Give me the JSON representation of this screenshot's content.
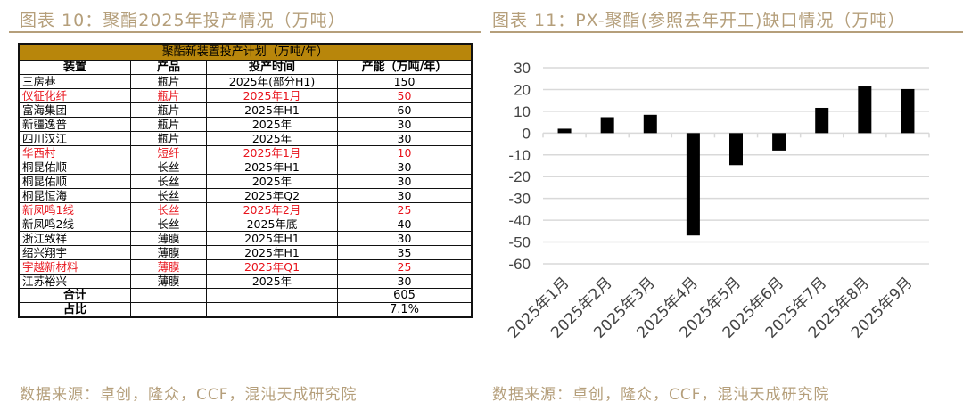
{
  "left": {
    "title": "图表 10：聚酯2025年投产情况（万吨）",
    "source": "数据来源：卓创，隆众，CCF，混沌天成研究院",
    "table": {
      "caption": "聚酯新装置投产计划（万吨/年）",
      "headers": [
        "装置",
        "产品",
        "投产时间",
        "产能（万吨/年）"
      ],
      "rows": [
        {
          "cells": [
            "三房巷",
            "瓶片",
            "2025年(部分H1)",
            "150"
          ],
          "highlight": false
        },
        {
          "cells": [
            "仪征化纤",
            "瓶片",
            "2025年1月",
            "50"
          ],
          "highlight": true
        },
        {
          "cells": [
            "富海集团",
            "瓶片",
            "2025年H1",
            "60"
          ],
          "highlight": false
        },
        {
          "cells": [
            "新疆逸普",
            "瓶片",
            "2025年",
            "30"
          ],
          "highlight": false
        },
        {
          "cells": [
            "四川汉江",
            "瓶片",
            "2025年",
            "30"
          ],
          "highlight": false
        },
        {
          "cells": [
            "华西村",
            "短纤",
            "2025年1月",
            "10"
          ],
          "highlight": true
        },
        {
          "cells": [
            "桐昆佑顺",
            "长丝",
            "2025年H1",
            "30"
          ],
          "highlight": false
        },
        {
          "cells": [
            "桐昆佑顺",
            "长丝",
            "2025年",
            "30"
          ],
          "highlight": false
        },
        {
          "cells": [
            "桐昆恒海",
            "长丝",
            "2025年Q2",
            "30"
          ],
          "highlight": false
        },
        {
          "cells": [
            "新凤鸣1线",
            "长丝",
            "2025年2月",
            "25"
          ],
          "highlight": true
        },
        {
          "cells": [
            "新凤鸣2线",
            "长丝",
            "2025年底",
            "40"
          ],
          "highlight": false
        },
        {
          "cells": [
            "浙江致祥",
            "薄膜",
            "2025年H1",
            "30"
          ],
          "highlight": false
        },
        {
          "cells": [
            "绍兴翔宇",
            "薄膜",
            "2025年H1",
            "35"
          ],
          "highlight": false
        },
        {
          "cells": [
            "宇越新材料",
            "薄膜",
            "2025年Q1",
            "25"
          ],
          "highlight": true
        },
        {
          "cells": [
            "江苏裕兴",
            "薄膜",
            "2025年",
            "30"
          ],
          "highlight": false
        }
      ],
      "total": {
        "label": "合计",
        "value": "605"
      },
      "ratio": {
        "label": "占比",
        "value": "7.1%"
      },
      "colors": {
        "header": "#b8860b",
        "highlight": "#e8141c"
      }
    }
  },
  "right": {
    "title": "图表 11：PX-聚酯(参照去年开工)缺口情况（万吨）",
    "source": "数据来源：卓创，隆众，CCF，混沌天成研究院"
  },
  "chart_data": {
    "type": "bar",
    "categories": [
      "2025年1月",
      "2025年2月",
      "2025年3月",
      "2025年4月",
      "2025年5月",
      "2025年6月",
      "2025年7月",
      "2025年8月",
      "2025年9月"
    ],
    "values": [
      2,
      7.3,
      8.4,
      -47,
      -14.7,
      -8,
      11.6,
      21.4,
      20.2
    ],
    "ylim": [
      -60,
      30
    ],
    "yticks": [
      30,
      20,
      10,
      0,
      -10,
      -20,
      -30,
      -40,
      -50,
      -60
    ],
    "grid": true,
    "bar_color": "#000000"
  }
}
